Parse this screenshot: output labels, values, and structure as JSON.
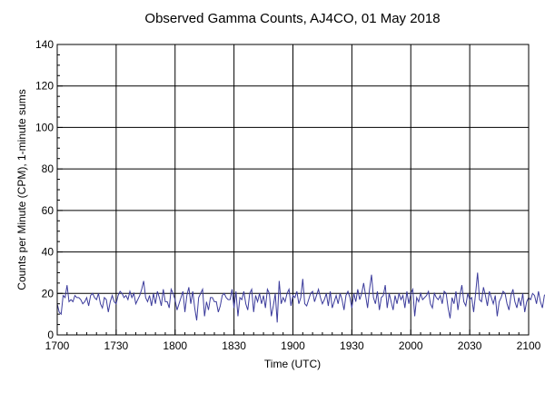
{
  "chart_data": {
    "type": "line",
    "title": "Observed Gamma Counts, AJ4CO, 01 May 2018",
    "xlabel": "Time (UTC)",
    "ylabel": "Counts per Minute (CPM), 1-minute sums",
    "xlim": [
      0,
      240
    ],
    "ylim": [
      0,
      140
    ],
    "x_tick_labels": [
      "1700",
      "1730",
      "1800",
      "1830",
      "1900",
      "1930",
      "2000",
      "2030",
      "2100"
    ],
    "y_tick_labels": [
      "0",
      "20",
      "40",
      "60",
      "80",
      "100",
      "120",
      "140"
    ],
    "y_ticks": [
      0,
      20,
      40,
      60,
      80,
      100,
      120,
      140
    ],
    "grid": true,
    "legend": "none",
    "series": [
      {
        "x_start": "1700",
        "x_step_minutes": 1,
        "values": [
          15,
          11,
          10,
          19,
          18,
          24,
          16,
          17,
          16,
          19,
          18,
          18,
          17,
          15,
          16,
          18,
          14,
          19,
          20,
          18,
          17,
          20,
          15,
          13,
          18,
          17,
          11,
          16,
          19,
          16,
          15,
          19,
          21,
          20,
          18,
          19,
          17,
          21,
          18,
          20,
          15,
          17,
          19,
          22,
          26,
          18,
          16,
          19,
          14,
          20,
          15,
          21,
          18,
          14,
          22,
          16,
          16,
          13,
          22,
          20,
          17,
          12,
          15,
          18,
          21,
          11,
          19,
          23,
          15,
          21,
          13,
          7,
          18,
          20,
          22,
          9,
          16,
          12,
          18,
          18,
          16,
          16,
          11,
          14,
          19,
          20,
          18,
          17,
          17,
          22,
          13,
          21,
          9,
          18,
          17,
          21,
          15,
          12,
          20,
          22,
          11,
          19,
          16,
          20,
          15,
          19,
          13,
          22,
          20,
          9,
          14,
          20,
          6,
          26,
          15,
          18,
          16,
          20,
          22,
          14,
          19,
          18,
          21,
          15,
          18,
          27,
          15,
          14,
          17,
          20,
          21,
          16,
          19,
          22,
          18,
          15,
          17,
          20,
          14,
          21,
          13,
          16,
          19,
          15,
          20,
          17,
          12,
          19,
          21,
          18,
          13,
          20,
          16,
          22,
          17,
          20,
          25,
          19,
          13,
          22,
          29,
          18,
          15,
          21,
          12,
          18,
          19,
          24,
          13,
          20,
          16,
          12,
          19,
          15,
          20,
          17,
          19,
          13,
          21,
          15,
          20,
          22,
          9,
          18,
          16,
          20,
          17,
          18,
          19,
          21,
          15,
          13,
          20,
          18,
          17,
          19,
          15,
          21,
          20,
          13,
          8,
          18,
          15,
          21,
          12,
          19,
          24,
          16,
          14,
          20,
          17,
          18,
          11,
          20,
          30,
          17,
          16,
          23,
          19,
          14,
          21,
          18,
          15,
          19,
          9,
          16,
          18,
          21,
          20,
          15,
          12,
          19,
          22,
          16,
          13,
          18,
          14,
          20,
          11,
          16,
          18,
          17,
          20,
          19,
          15,
          21,
          16,
          13,
          19,
          20
        ]
      }
    ]
  },
  "colors": {
    "line": "#3c3c9c",
    "grid": "#000000",
    "frame": "#000000",
    "background": "#ffffff"
  }
}
